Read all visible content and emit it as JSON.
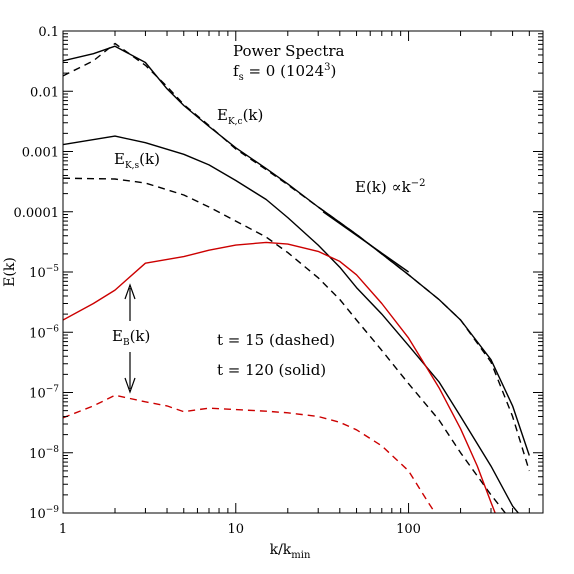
{
  "chart_data": {
    "type": "line",
    "xscale": "log",
    "yscale": "log",
    "xlim": [
      1,
      600
    ],
    "ylim": [
      1e-09,
      0.1
    ],
    "xlabel_main": "k/k",
    "xlabel_sub": "min",
    "ylabel": "E(k)",
    "x_ticks": [
      {
        "value": 1,
        "label": "1"
      },
      {
        "value": 10,
        "label": "10"
      },
      {
        "value": 100,
        "label": "100"
      }
    ],
    "y_ticks": [
      {
        "value": 0.1,
        "base": "0.1",
        "exp": ""
      },
      {
        "value": 0.01,
        "base": "0.01",
        "exp": ""
      },
      {
        "value": 0.001,
        "base": "0.001",
        "exp": ""
      },
      {
        "value": 0.0001,
        "base": "0.0001",
        "exp": ""
      },
      {
        "value": 1e-05,
        "base": "10",
        "exp": "−5"
      },
      {
        "value": 1e-06,
        "base": "10",
        "exp": "−6"
      },
      {
        "value": 1e-07,
        "base": "10",
        "exp": "−7"
      },
      {
        "value": 1e-08,
        "base": "10",
        "exp": "−8"
      },
      {
        "value": 1e-09,
        "base": "10",
        "exp": "−9"
      }
    ],
    "annotations": {
      "title": "Power Spectra",
      "fs_main": "f",
      "fs_sub": "s",
      "fs_rest": " = 0 (1024",
      "fs_sup": "3",
      "fs_close": ")",
      "ekc_main": "E",
      "ekc_sub": "K,c",
      "ekc_rest": "(k)",
      "eks_main": "E",
      "eks_sub": "K,s",
      "eks_rest": "(k)",
      "eb_main": "E",
      "eb_sub": "B",
      "eb_rest": "(k)",
      "ref_main": "E(k) ∝k",
      "ref_sup": "−2",
      "t_dashed": "t = 15 (dashed)",
      "t_solid": "t = 120 (solid)"
    },
    "series": [
      {
        "color": "#000000",
        "style": "solid",
        "points": [
          [
            1,
            0.032
          ],
          [
            1.5,
            0.042
          ],
          [
            2,
            0.056
          ],
          [
            3,
            0.03
          ],
          [
            4,
            0.011
          ],
          [
            5,
            0.0058
          ],
          [
            7,
            0.0026
          ],
          [
            10,
            0.00115
          ],
          [
            15,
            0.00052
          ],
          [
            20,
            0.00029
          ],
          [
            30,
            0.00012
          ],
          [
            50,
            4.2e-05
          ],
          [
            70,
            2e-05
          ],
          [
            100,
            9e-06
          ],
          [
            150,
            3.5e-06
          ],
          [
            200,
            1.6e-06
          ],
          [
            300,
            3.5e-07
          ],
          [
            400,
            6e-08
          ],
          [
            500,
            9e-09
          ]
        ]
      },
      {
        "color": "#000000",
        "style": "dashed",
        "points": [
          [
            1,
            0.018
          ],
          [
            1.5,
            0.032
          ],
          [
            2,
            0.062
          ],
          [
            3,
            0.027
          ],
          [
            4,
            0.012
          ],
          [
            5,
            0.006
          ],
          [
            7,
            0.0027
          ],
          [
            10,
            0.0011
          ],
          [
            15,
            0.0005
          ],
          [
            20,
            0.00028
          ],
          [
            30,
            0.00012
          ],
          [
            50,
            4.2e-05
          ],
          [
            70,
            2e-05
          ],
          [
            100,
            9e-06
          ],
          [
            150,
            3.5e-06
          ],
          [
            200,
            1.6e-06
          ],
          [
            300,
            3.2e-07
          ],
          [
            400,
            4e-08
          ],
          [
            500,
            5e-09
          ]
        ]
      },
      {
        "color": "#000000",
        "style": "solid",
        "points": [
          [
            1,
            0.0013
          ],
          [
            2,
            0.0018
          ],
          [
            3,
            0.0014
          ],
          [
            5,
            0.0009
          ],
          [
            7,
            0.0006
          ],
          [
            10,
            0.00033
          ],
          [
            15,
            0.00016
          ],
          [
            20,
            8e-05
          ],
          [
            30,
            2.8e-05
          ],
          [
            40,
            1.2e-05
          ],
          [
            50,
            5.5e-06
          ],
          [
            70,
            2e-06
          ],
          [
            100,
            6e-07
          ],
          [
            150,
            1.5e-07
          ],
          [
            200,
            4e-08
          ],
          [
            300,
            6e-09
          ],
          [
            400,
            1.3e-09
          ],
          [
            500,
            6e-10
          ]
        ]
      },
      {
        "color": "#000000",
        "style": "dashed",
        "points": [
          [
            1,
            0.00036
          ],
          [
            2,
            0.00035
          ],
          [
            3,
            0.0003
          ],
          [
            5,
            0.00019
          ],
          [
            7,
            0.00012
          ],
          [
            10,
            7e-05
          ],
          [
            15,
            3.8e-05
          ],
          [
            20,
            2.1e-05
          ],
          [
            30,
            8e-06
          ],
          [
            40,
            3.5e-06
          ],
          [
            50,
            1.6e-06
          ],
          [
            70,
            5e-07
          ],
          [
            100,
            1.4e-07
          ],
          [
            150,
            3.5e-08
          ],
          [
            200,
            1e-08
          ],
          [
            300,
            2e-09
          ],
          [
            400,
            7e-10
          ]
        ]
      },
      {
        "color": "#cc0000",
        "style": "solid",
        "points": [
          [
            1,
            1.6e-06
          ],
          [
            1.5,
            3e-06
          ],
          [
            2,
            5e-06
          ],
          [
            3,
            1.4e-05
          ],
          [
            5,
            1.8e-05
          ],
          [
            7,
            2.3e-05
          ],
          [
            10,
            2.8e-05
          ],
          [
            15,
            3.1e-05
          ],
          [
            20,
            2.9e-05
          ],
          [
            30,
            2.2e-05
          ],
          [
            40,
            1.5e-05
          ],
          [
            50,
            9e-06
          ],
          [
            70,
            3e-06
          ],
          [
            100,
            8e-07
          ],
          [
            150,
            1.2e-07
          ],
          [
            200,
            2.5e-08
          ],
          [
            250,
            6e-09
          ],
          [
            300,
            1.5e-09
          ],
          [
            340,
            6e-10
          ]
        ]
      },
      {
        "color": "#cc0000",
        "style": "dashed",
        "points": [
          [
            1,
            3.8e-08
          ],
          [
            1.5,
            6e-08
          ],
          [
            2,
            9e-08
          ],
          [
            3,
            7e-08
          ],
          [
            4,
            6e-08
          ],
          [
            5,
            4.8e-08
          ],
          [
            7,
            5.5e-08
          ],
          [
            10,
            5.2e-08
          ],
          [
            15,
            4.9e-08
          ],
          [
            20,
            4.6e-08
          ],
          [
            30,
            4e-08
          ],
          [
            40,
            3.2e-08
          ],
          [
            50,
            2.4e-08
          ],
          [
            70,
            1.3e-08
          ],
          [
            100,
            5e-09
          ],
          [
            130,
            1.5e-09
          ],
          [
            150,
            8e-10
          ]
        ]
      },
      {
        "color": "#000000",
        "style": "solid",
        "points": [
          [
            32,
            0.0001
          ],
          [
            100,
            1e-05
          ]
        ]
      }
    ]
  }
}
